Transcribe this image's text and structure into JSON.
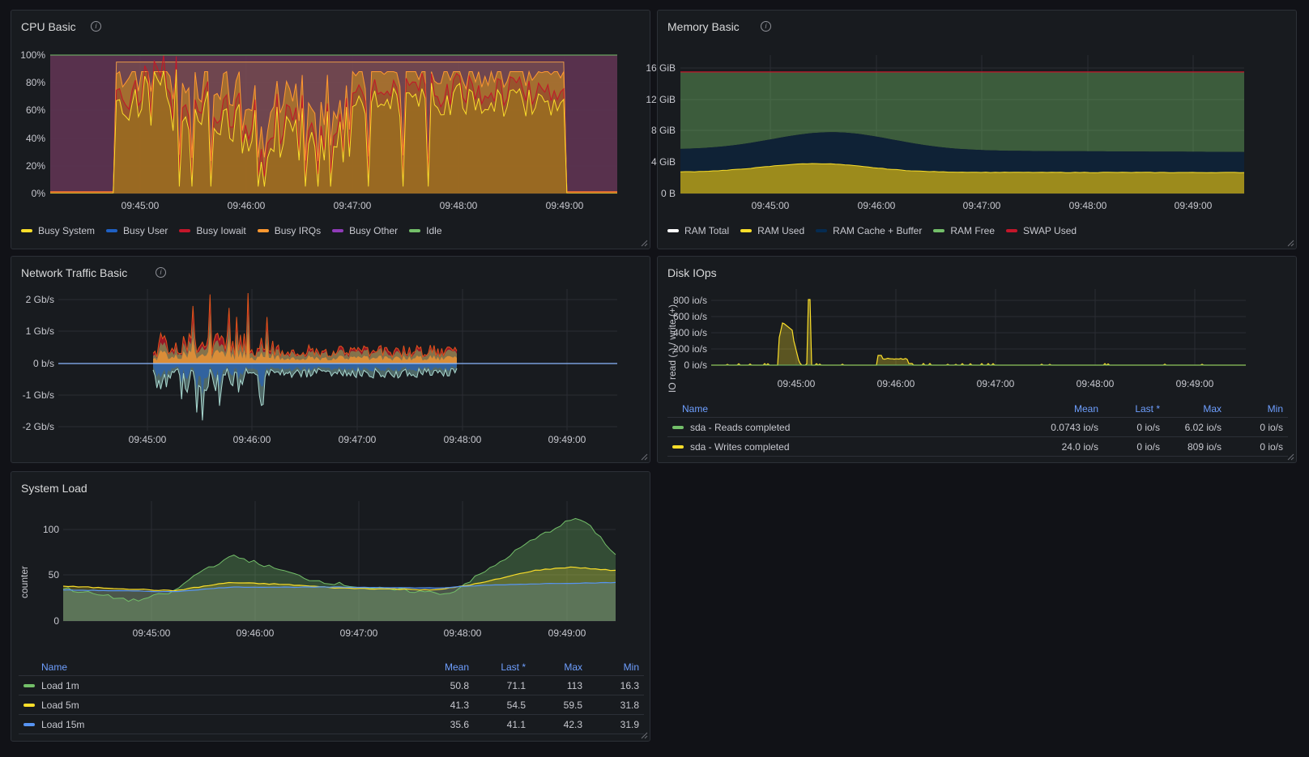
{
  "time_labels": [
    "09:45:00",
    "09:46:00",
    "09:47:00",
    "09:48:00",
    "09:49:00"
  ],
  "cpu": {
    "title": "CPU Basic",
    "y_ticks": [
      "100%",
      "80%",
      "60%",
      "40%",
      "20%",
      "0%"
    ],
    "legend": [
      {
        "label": "Busy System",
        "color": "#fade2a"
      },
      {
        "label": "Busy User",
        "color": "#1f60c4"
      },
      {
        "label": "Busy Iowait",
        "color": "#c4162a"
      },
      {
        "label": "Busy IRQs",
        "color": "#ff9830"
      },
      {
        "label": "Busy Other",
        "color": "#8f3bb8"
      },
      {
        "label": "Idle",
        "color": "#73bf69"
      }
    ]
  },
  "memory": {
    "title": "Memory Basic",
    "y_ticks": [
      "16 GiB",
      "12 GiB",
      "8 GiB",
      "4 GiB",
      "0 B"
    ],
    "legend": [
      {
        "label": "RAM Total",
        "color": "#ffffff"
      },
      {
        "label": "RAM Used",
        "color": "#fade2a"
      },
      {
        "label": "RAM Cache + Buffer",
        "color": "#052b51"
      },
      {
        "label": "RAM Free",
        "color": "#73bf69"
      },
      {
        "label": "SWAP Used",
        "color": "#c4162a"
      }
    ]
  },
  "network": {
    "title": "Network Traffic Basic",
    "y_ticks": [
      "2 Gb/s",
      "1 Gb/s",
      "0 b/s",
      "-1 Gb/s",
      "-2 Gb/s"
    ]
  },
  "disk": {
    "title": "Disk IOps",
    "y_label": "IO read (-) / write (+)",
    "y_ticks": [
      "800 io/s",
      "600 io/s",
      "400 io/s",
      "200 io/s",
      "0 io/s"
    ],
    "columns": [
      "Name",
      "Mean",
      "Last *",
      "Max",
      "Min"
    ],
    "rows": [
      {
        "name": "sda - Reads completed",
        "color": "#73bf69",
        "mean": "0.0743 io/s",
        "last": "0 io/s",
        "max": "6.02 io/s",
        "min": "0 io/s"
      },
      {
        "name": "sda - Writes completed",
        "color": "#fade2a",
        "mean": "24.0 io/s",
        "last": "0 io/s",
        "max": "809 io/s",
        "min": "0 io/s"
      }
    ]
  },
  "load": {
    "title": "System Load",
    "y_label": "counter",
    "y_ticks": [
      "100",
      "50",
      "0"
    ],
    "columns": [
      "Name",
      "Mean",
      "Last *",
      "Max",
      "Min"
    ],
    "rows": [
      {
        "name": "Load 1m",
        "color": "#73bf69",
        "mean": "50.8",
        "last": "71.1",
        "max": "113",
        "min": "16.3"
      },
      {
        "name": "Load 5m",
        "color": "#fade2a",
        "mean": "41.3",
        "last": "54.5",
        "max": "59.5",
        "min": "31.8"
      },
      {
        "name": "Load 15m",
        "color": "#5794f2",
        "mean": "35.6",
        "last": "41.1",
        "max": "42.3",
        "min": "31.9"
      }
    ]
  }
}
